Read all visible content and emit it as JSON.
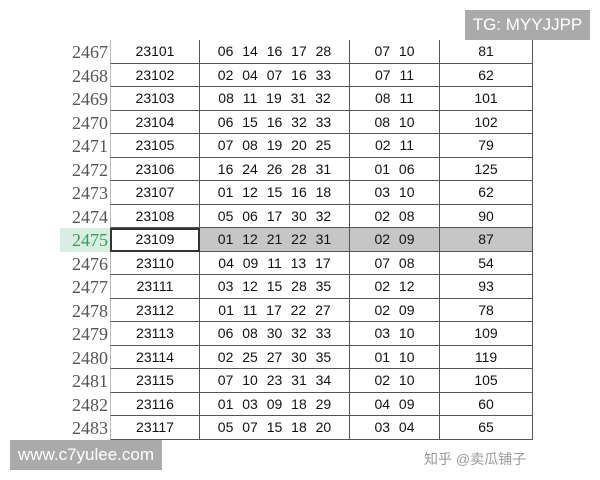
{
  "watermarks": {
    "top_right": "TG: MYYJJPP",
    "bottom_left": "www.c7yulee.com",
    "zhihu": "知乎 @卖瓜铺子"
  },
  "selected_row": "2475",
  "rows": [
    [
      "2467",
      "23101",
      "06 14 16 17 28",
      "07 10",
      "81"
    ],
    [
      "2468",
      "23102",
      "02 04 07 16 33",
      "07 11",
      "62"
    ],
    [
      "2469",
      "23103",
      "08 11 19 31 32",
      "08 11",
      "101"
    ],
    [
      "2470",
      "23104",
      "06 15 16 32 33",
      "08 10",
      "102"
    ],
    [
      "2471",
      "23105",
      "07 08 19 20 25",
      "02 11",
      "79"
    ],
    [
      "2472",
      "23106",
      "16 24 26 28 31",
      "01 06",
      "125"
    ],
    [
      "2473",
      "23107",
      "01 12 15 16 18",
      "03 10",
      "62"
    ],
    [
      "2474",
      "23108",
      "05 06 17 30 32",
      "02 08",
      "90"
    ],
    [
      "2475",
      "23109",
      "01 12 21 22 31",
      "02 09",
      "87"
    ],
    [
      "2476",
      "23110",
      "04 09 11 13 17",
      "07 08",
      "54"
    ],
    [
      "2477",
      "23111",
      "03 12 15 28 35",
      "02 12",
      "93"
    ],
    [
      "2478",
      "23112",
      "01 11 17 22 27",
      "02 09",
      "78"
    ],
    [
      "2479",
      "23113",
      "06 08 30 32 33",
      "03 10",
      "109"
    ],
    [
      "2480",
      "23114",
      "02 25 27 30 35",
      "01 10",
      "119"
    ],
    [
      "2481",
      "23115",
      "07 10 23 31 34",
      "02 10",
      "105"
    ],
    [
      "2482",
      "23116",
      "01 03 09 18 29",
      "04 09",
      "60"
    ],
    [
      "2483",
      "23117",
      "05 07 15 18 20",
      "03 04",
      "65"
    ]
  ]
}
